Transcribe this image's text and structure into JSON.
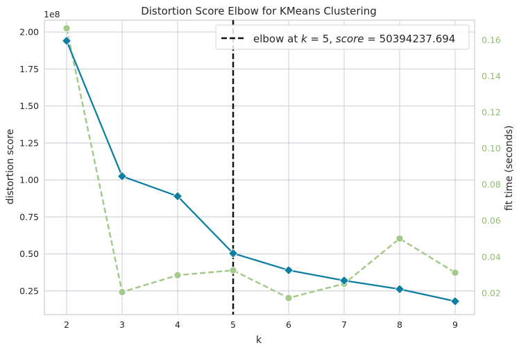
{
  "chart_data": {
    "type": "line",
    "title": "Distortion Score Elbow for KMeans Clustering",
    "xlabel": "k",
    "ylabel": "distortion score",
    "y2label": "fit time (seconds)",
    "y_offset_label": "1e8",
    "x": [
      2,
      3,
      4,
      5,
      6,
      7,
      8,
      9
    ],
    "x_ticks": [
      "2",
      "3",
      "4",
      "5",
      "6",
      "7",
      "8",
      "9"
    ],
    "xlim": [
      1.6,
      9.35
    ],
    "ylim": [
      0.09,
      2.08
    ],
    "y2lim": [
      0.008,
      0.171
    ],
    "y_ticks": [
      "0.25",
      "0.50",
      "0.75",
      "1.00",
      "1.25",
      "1.50",
      "1.75",
      "2.00"
    ],
    "y2_ticks": [
      "0.02",
      "0.04",
      "0.06",
      "0.08",
      "0.10",
      "0.12",
      "0.14",
      "0.16"
    ],
    "series": [
      {
        "name": "distortion score",
        "axis": "left",
        "unit_scale": "1e8",
        "values": [
          1.94,
          1.025,
          0.89,
          0.504,
          0.39,
          0.32,
          0.262,
          0.18
        ],
        "color": "#0f7ea3",
        "marker": "diamond",
        "style": "solid"
      },
      {
        "name": "fit time (seconds)",
        "axis": "right",
        "values": [
          0.1665,
          0.0205,
          0.0298,
          0.0325,
          0.0172,
          0.0251,
          0.0501,
          0.0312
        ],
        "color": "#a5c98a",
        "marker": "circle",
        "style": "dashed"
      }
    ],
    "elbow": {
      "k": 5,
      "score": "50394237.694",
      "color": "#111111"
    },
    "legend": {
      "prefix": "elbow at ",
      "k_var": "k",
      "eq_k": " = 5, ",
      "score_var": "score",
      "eq_score": " = 50394237.694",
      "position": "top-right"
    },
    "colors": {
      "grid": "#cfd3da",
      "spine": "#cfd3da",
      "right_axis": "#8fbf6a"
    }
  }
}
